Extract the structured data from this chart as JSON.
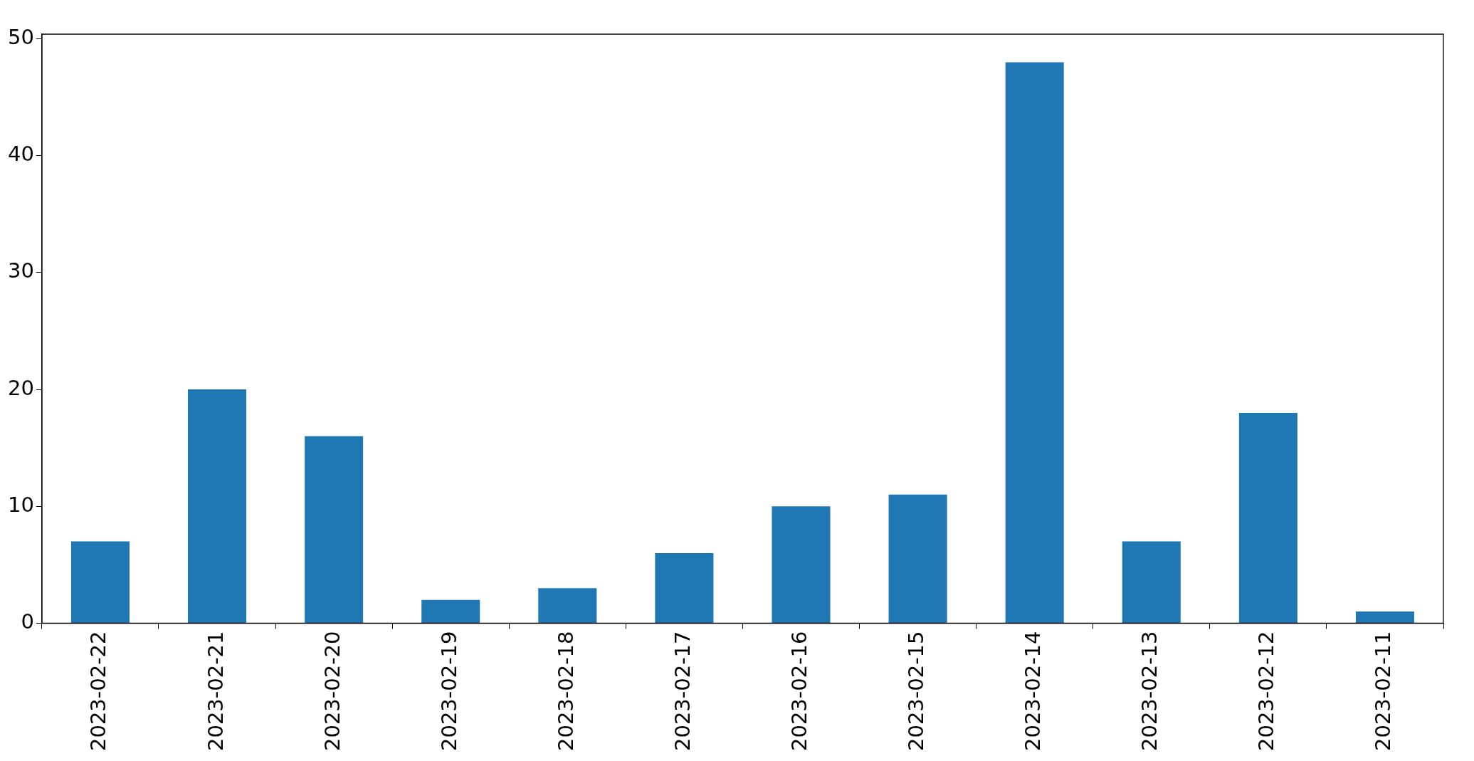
{
  "chart_data": {
    "type": "bar",
    "categories": [
      "2023-02-22",
      "2023-02-21",
      "2023-02-20",
      "2023-02-19",
      "2023-02-18",
      "2023-02-17",
      "2023-02-16",
      "2023-02-15",
      "2023-02-14",
      "2023-02-13",
      "2023-02-12",
      "2023-02-11"
    ],
    "values": [
      7,
      20,
      16,
      2,
      3,
      6,
      10,
      11,
      48,
      7,
      18,
      1
    ],
    "color": "#1f77b4",
    "ylim": [
      0,
      50.4
    ],
    "yticks": [
      0,
      10,
      20,
      30,
      40,
      50
    ],
    "grid": false,
    "legend": false
  }
}
